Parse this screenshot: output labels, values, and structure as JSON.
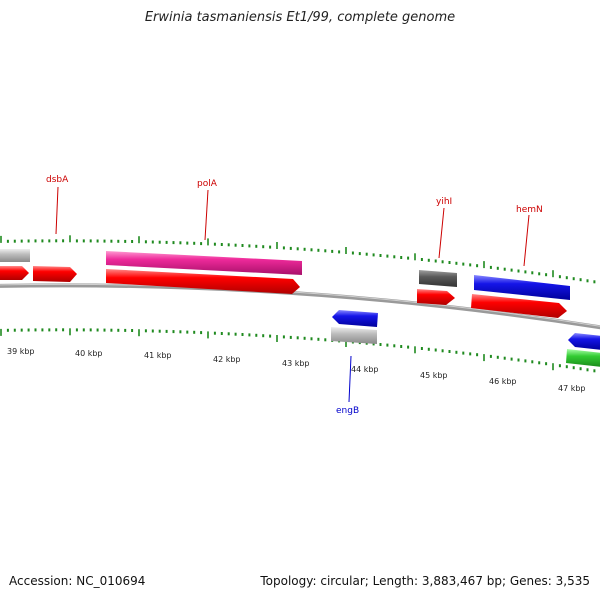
{
  "title": "Erwinia tasmaniensis Et1/99, complete genome",
  "accession": "Accession: NC_010694",
  "summary": "Topology: circular; Length: 3,883,467 bp; Genes: 3,535",
  "colors": {
    "backbone": "#8c8c8c",
    "tick": "#1f8a1f",
    "gene_label_forward": "#cc0000",
    "gene_label_reverse": "#0000cc",
    "red": "#ff0000",
    "magenta": "#ee2a9a",
    "blue": "#1515e8",
    "grey": "#b7b7b7",
    "dark_grey": "#5a5a5a",
    "green": "#33cc33"
  },
  "kbp_labels": [
    "39 kbp",
    "40 kbp",
    "41 kbp",
    "42 kbp",
    "43 kbp",
    "44 kbp",
    "45 kbp",
    "46 kbp",
    "47 kbp"
  ],
  "gene_labels": {
    "dsbA": "dsbA",
    "polA": "polA",
    "yihI": "yihI",
    "hemN": "hemN",
    "engB": "engB"
  }
}
